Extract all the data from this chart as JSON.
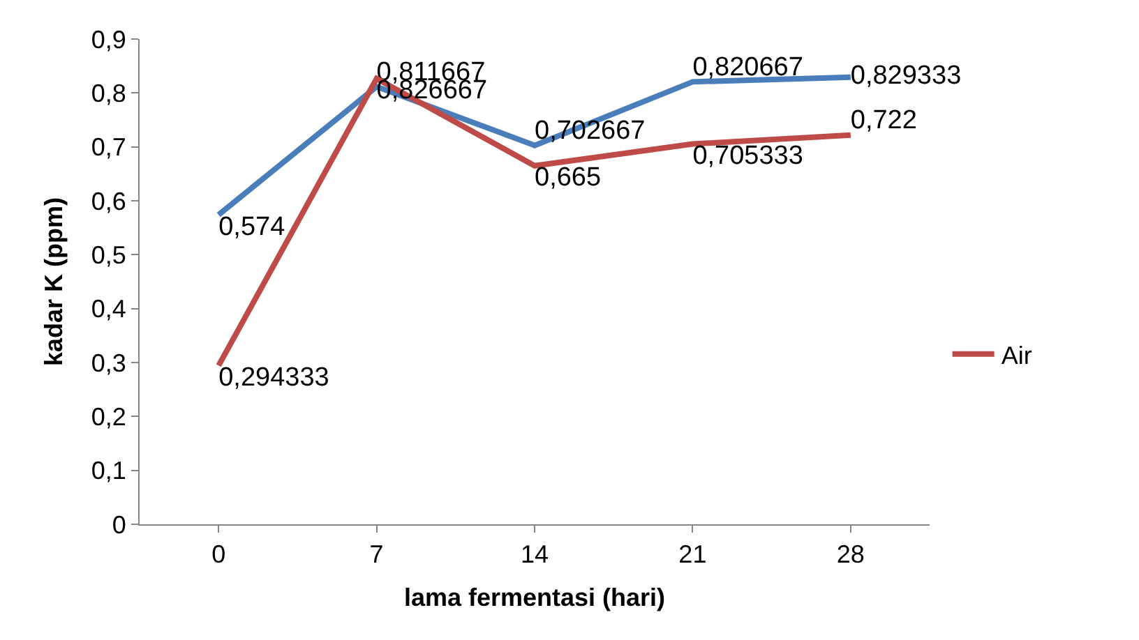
{
  "chart_data": {
    "type": "line",
    "xlabel": "lama fermentasi (hari)",
    "ylabel": "kadar K (ppm)",
    "categories": [
      "0",
      "7",
      "14",
      "21",
      "28"
    ],
    "series": [
      {
        "color": "#4a7ebb",
        "values": [
          0.574,
          0.811667,
          0.702667,
          0.820667,
          0.829333
        ],
        "value_labels": [
          "0,574",
          "0,811667",
          "0,702667",
          "0,820667",
          "0,829333"
        ]
      },
      {
        "name": "Air",
        "color": "#be4b48",
        "values": [
          0.294333,
          0.826667,
          0.665,
          0.705333,
          0.722
        ],
        "value_labels": [
          "0,294333",
          "0,826667",
          "0,665",
          "0,705333",
          "0,722"
        ]
      }
    ],
    "ylim": [
      0,
      0.9
    ],
    "yticks": [
      {
        "value": 0,
        "label": "0"
      },
      {
        "value": 0.1,
        "label": "0,1"
      },
      {
        "value": 0.2,
        "label": "0,2"
      },
      {
        "value": 0.3,
        "label": "0,3"
      },
      {
        "value": 0.4,
        "label": "0,4"
      },
      {
        "value": 0.5,
        "label": "0,5"
      },
      {
        "value": 0.6,
        "label": "0,6"
      },
      {
        "value": 0.7,
        "label": "0,7"
      },
      {
        "value": 0.8,
        "label": "0,8"
      },
      {
        "value": 0.9,
        "label": "0,9"
      }
    ],
    "legend": "right",
    "marker": "none",
    "line_style": "solid"
  }
}
